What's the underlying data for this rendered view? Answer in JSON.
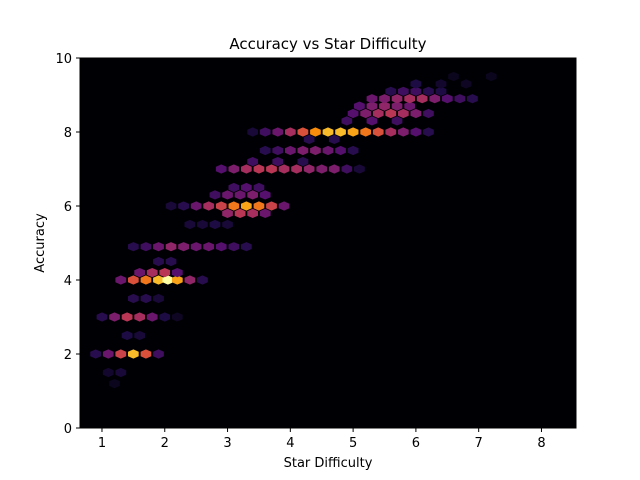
{
  "chart_data": {
    "type": "heatmap",
    "subtype": "hexbin",
    "title": "Accuracy vs Star Difficulty",
    "xlabel": "Star Difficulty",
    "ylabel": "Accuracy",
    "xlim": [
      0.65,
      8.55
    ],
    "ylim": [
      0,
      10
    ],
    "xticks": [
      1,
      2,
      3,
      4,
      5,
      6,
      7,
      8
    ],
    "yticks": [
      0,
      2,
      4,
      6,
      8,
      10
    ],
    "colormap": "inferno",
    "background_color": "#000004",
    "grid": false,
    "cells": [
      {
        "x": 0.9,
        "y": 2.0,
        "d": 0.15
      },
      {
        "x": 1.1,
        "y": 2.0,
        "d": 0.3
      },
      {
        "x": 1.3,
        "y": 2.0,
        "d": 0.55
      },
      {
        "x": 1.5,
        "y": 2.0,
        "d": 0.85
      },
      {
        "x": 1.7,
        "y": 2.0,
        "d": 0.6
      },
      {
        "x": 1.9,
        "y": 2.0,
        "d": 0.2
      },
      {
        "x": 1.1,
        "y": 1.5,
        "d": 0.08
      },
      {
        "x": 1.3,
        "y": 1.5,
        "d": 0.1
      },
      {
        "x": 1.2,
        "y": 1.2,
        "d": 0.05
      },
      {
        "x": 1.4,
        "y": 2.5,
        "d": 0.12
      },
      {
        "x": 1.6,
        "y": 2.5,
        "d": 0.1
      },
      {
        "x": 1.0,
        "y": 3.0,
        "d": 0.15
      },
      {
        "x": 1.2,
        "y": 3.0,
        "d": 0.35
      },
      {
        "x": 1.4,
        "y": 3.0,
        "d": 0.5
      },
      {
        "x": 1.6,
        "y": 3.0,
        "d": 0.45
      },
      {
        "x": 1.8,
        "y": 3.0,
        "d": 0.3
      },
      {
        "x": 2.0,
        "y": 3.0,
        "d": 0.12
      },
      {
        "x": 2.2,
        "y": 3.0,
        "d": 0.06
      },
      {
        "x": 1.5,
        "y": 3.5,
        "d": 0.15
      },
      {
        "x": 1.7,
        "y": 3.5,
        "d": 0.15
      },
      {
        "x": 1.9,
        "y": 3.5,
        "d": 0.1
      },
      {
        "x": 1.3,
        "y": 4.0,
        "d": 0.3
      },
      {
        "x": 1.5,
        "y": 4.0,
        "d": 0.6
      },
      {
        "x": 1.7,
        "y": 4.0,
        "d": 0.7
      },
      {
        "x": 1.9,
        "y": 4.0,
        "d": 0.85
      },
      {
        "x": 2.05,
        "y": 4.0,
        "d": 1.0
      },
      {
        "x": 2.2,
        "y": 4.0,
        "d": 0.8
      },
      {
        "x": 2.4,
        "y": 4.0,
        "d": 0.4
      },
      {
        "x": 2.6,
        "y": 4.0,
        "d": 0.15
      },
      {
        "x": 1.6,
        "y": 4.2,
        "d": 0.3
      },
      {
        "x": 1.8,
        "y": 4.2,
        "d": 0.45
      },
      {
        "x": 2.0,
        "y": 4.2,
        "d": 0.5
      },
      {
        "x": 2.2,
        "y": 4.2,
        "d": 0.25
      },
      {
        "x": 1.9,
        "y": 4.5,
        "d": 0.15
      },
      {
        "x": 2.1,
        "y": 4.5,
        "d": 0.15
      },
      {
        "x": 1.5,
        "y": 4.9,
        "d": 0.15
      },
      {
        "x": 1.7,
        "y": 4.9,
        "d": 0.2
      },
      {
        "x": 1.9,
        "y": 4.9,
        "d": 0.3
      },
      {
        "x": 2.1,
        "y": 4.9,
        "d": 0.4
      },
      {
        "x": 2.3,
        "y": 4.9,
        "d": 0.35
      },
      {
        "x": 2.5,
        "y": 4.9,
        "d": 0.3
      },
      {
        "x": 2.7,
        "y": 4.9,
        "d": 0.3
      },
      {
        "x": 2.9,
        "y": 4.9,
        "d": 0.25
      },
      {
        "x": 3.1,
        "y": 4.9,
        "d": 0.2
      },
      {
        "x": 3.3,
        "y": 4.9,
        "d": 0.15
      },
      {
        "x": 2.4,
        "y": 5.5,
        "d": 0.1
      },
      {
        "x": 2.6,
        "y": 5.5,
        "d": 0.1
      },
      {
        "x": 2.8,
        "y": 5.5,
        "d": 0.12
      },
      {
        "x": 3.0,
        "y": 5.5,
        "d": 0.1
      },
      {
        "x": 2.1,
        "y": 6.0,
        "d": 0.1
      },
      {
        "x": 2.3,
        "y": 6.0,
        "d": 0.15
      },
      {
        "x": 2.5,
        "y": 6.0,
        "d": 0.3
      },
      {
        "x": 2.7,
        "y": 6.0,
        "d": 0.45
      },
      {
        "x": 2.9,
        "y": 6.0,
        "d": 0.55
      },
      {
        "x": 3.1,
        "y": 6.0,
        "d": 0.7
      },
      {
        "x": 3.3,
        "y": 6.0,
        "d": 0.8
      },
      {
        "x": 3.5,
        "y": 6.0,
        "d": 0.7
      },
      {
        "x": 3.7,
        "y": 6.0,
        "d": 0.55
      },
      {
        "x": 3.9,
        "y": 6.0,
        "d": 0.3
      },
      {
        "x": 3.0,
        "y": 5.8,
        "d": 0.4
      },
      {
        "x": 3.2,
        "y": 5.8,
        "d": 0.5
      },
      {
        "x": 3.4,
        "y": 5.8,
        "d": 0.45
      },
      {
        "x": 3.6,
        "y": 5.8,
        "d": 0.3
      },
      {
        "x": 2.8,
        "y": 6.3,
        "d": 0.2
      },
      {
        "x": 3.0,
        "y": 6.3,
        "d": 0.3
      },
      {
        "x": 3.2,
        "y": 6.3,
        "d": 0.3
      },
      {
        "x": 3.4,
        "y": 6.3,
        "d": 0.35
      },
      {
        "x": 3.6,
        "y": 6.3,
        "d": 0.25
      },
      {
        "x": 3.1,
        "y": 6.5,
        "d": 0.2
      },
      {
        "x": 3.3,
        "y": 6.5,
        "d": 0.25
      },
      {
        "x": 3.5,
        "y": 6.5,
        "d": 0.2
      },
      {
        "x": 2.9,
        "y": 7.0,
        "d": 0.25
      },
      {
        "x": 3.1,
        "y": 7.0,
        "d": 0.35
      },
      {
        "x": 3.3,
        "y": 7.0,
        "d": 0.45
      },
      {
        "x": 3.5,
        "y": 7.0,
        "d": 0.5
      },
      {
        "x": 3.7,
        "y": 7.0,
        "d": 0.5
      },
      {
        "x": 3.9,
        "y": 7.0,
        "d": 0.45
      },
      {
        "x": 4.1,
        "y": 7.0,
        "d": 0.45
      },
      {
        "x": 4.3,
        "y": 7.0,
        "d": 0.4
      },
      {
        "x": 4.5,
        "y": 7.0,
        "d": 0.35
      },
      {
        "x": 4.7,
        "y": 7.0,
        "d": 0.35
      },
      {
        "x": 4.9,
        "y": 7.0,
        "d": 0.2
      },
      {
        "x": 5.1,
        "y": 7.0,
        "d": 0.1
      },
      {
        "x": 3.4,
        "y": 7.2,
        "d": 0.2
      },
      {
        "x": 3.8,
        "y": 7.2,
        "d": 0.2
      },
      {
        "x": 4.2,
        "y": 7.2,
        "d": 0.15
      },
      {
        "x": 3.6,
        "y": 7.5,
        "d": 0.15
      },
      {
        "x": 3.8,
        "y": 7.5,
        "d": 0.2
      },
      {
        "x": 4.0,
        "y": 7.5,
        "d": 0.3
      },
      {
        "x": 4.2,
        "y": 7.5,
        "d": 0.35
      },
      {
        "x": 4.4,
        "y": 7.5,
        "d": 0.35
      },
      {
        "x": 4.6,
        "y": 7.5,
        "d": 0.3
      },
      {
        "x": 4.8,
        "y": 7.5,
        "d": 0.25
      },
      {
        "x": 5.0,
        "y": 7.5,
        "d": 0.15
      },
      {
        "x": 4.3,
        "y": 7.8,
        "d": 0.15
      },
      {
        "x": 4.7,
        "y": 7.8,
        "d": 0.15
      },
      {
        "x": 3.4,
        "y": 8.0,
        "d": 0.1
      },
      {
        "x": 3.6,
        "y": 8.0,
        "d": 0.2
      },
      {
        "x": 3.8,
        "y": 8.0,
        "d": 0.3
      },
      {
        "x": 4.0,
        "y": 8.0,
        "d": 0.45
      },
      {
        "x": 4.2,
        "y": 8.0,
        "d": 0.6
      },
      {
        "x": 4.4,
        "y": 8.0,
        "d": 0.75
      },
      {
        "x": 4.6,
        "y": 8.0,
        "d": 0.85
      },
      {
        "x": 4.8,
        "y": 8.0,
        "d": 0.85
      },
      {
        "x": 5.0,
        "y": 8.0,
        "d": 0.8
      },
      {
        "x": 5.2,
        "y": 8.0,
        "d": 0.7
      },
      {
        "x": 5.4,
        "y": 8.0,
        "d": 0.6
      },
      {
        "x": 5.6,
        "y": 8.0,
        "d": 0.45
      },
      {
        "x": 5.8,
        "y": 8.0,
        "d": 0.35
      },
      {
        "x": 6.0,
        "y": 8.0,
        "d": 0.25
      },
      {
        "x": 6.2,
        "y": 8.0,
        "d": 0.15
      },
      {
        "x": 4.9,
        "y": 8.3,
        "d": 0.2
      },
      {
        "x": 5.3,
        "y": 8.3,
        "d": 0.25
      },
      {
        "x": 5.7,
        "y": 8.3,
        "d": 0.2
      },
      {
        "x": 5.0,
        "y": 8.5,
        "d": 0.25
      },
      {
        "x": 5.2,
        "y": 8.5,
        "d": 0.35
      },
      {
        "x": 5.4,
        "y": 8.5,
        "d": 0.45
      },
      {
        "x": 5.6,
        "y": 8.5,
        "d": 0.5
      },
      {
        "x": 5.8,
        "y": 8.5,
        "d": 0.45
      },
      {
        "x": 6.0,
        "y": 8.5,
        "d": 0.35
      },
      {
        "x": 6.2,
        "y": 8.5,
        "d": 0.2
      },
      {
        "x": 5.1,
        "y": 8.7,
        "d": 0.25
      },
      {
        "x": 5.3,
        "y": 8.7,
        "d": 0.35
      },
      {
        "x": 5.5,
        "y": 8.7,
        "d": 0.4
      },
      {
        "x": 5.7,
        "y": 8.7,
        "d": 0.35
      },
      {
        "x": 5.9,
        "y": 8.7,
        "d": 0.3
      },
      {
        "x": 5.3,
        "y": 8.9,
        "d": 0.3
      },
      {
        "x": 5.5,
        "y": 8.9,
        "d": 0.35
      },
      {
        "x": 5.7,
        "y": 8.9,
        "d": 0.4
      },
      {
        "x": 5.9,
        "y": 8.9,
        "d": 0.45
      },
      {
        "x": 6.1,
        "y": 8.9,
        "d": 0.45
      },
      {
        "x": 6.3,
        "y": 8.9,
        "d": 0.35
      },
      {
        "x": 6.5,
        "y": 8.9,
        "d": 0.25
      },
      {
        "x": 6.7,
        "y": 8.9,
        "d": 0.2
      },
      {
        "x": 6.9,
        "y": 8.9,
        "d": 0.15
      },
      {
        "x": 5.6,
        "y": 9.1,
        "d": 0.15
      },
      {
        "x": 5.8,
        "y": 9.1,
        "d": 0.2
      },
      {
        "x": 6.0,
        "y": 9.1,
        "d": 0.2
      },
      {
        "x": 6.2,
        "y": 9.1,
        "d": 0.15
      },
      {
        "x": 6.4,
        "y": 9.1,
        "d": 0.12
      },
      {
        "x": 6.0,
        "y": 9.3,
        "d": 0.12
      },
      {
        "x": 6.4,
        "y": 9.3,
        "d": 0.08
      },
      {
        "x": 6.8,
        "y": 9.3,
        "d": 0.06
      },
      {
        "x": 7.2,
        "y": 9.5,
        "d": 0.05
      },
      {
        "x": 6.6,
        "y": 9.5,
        "d": 0.05
      }
    ]
  }
}
